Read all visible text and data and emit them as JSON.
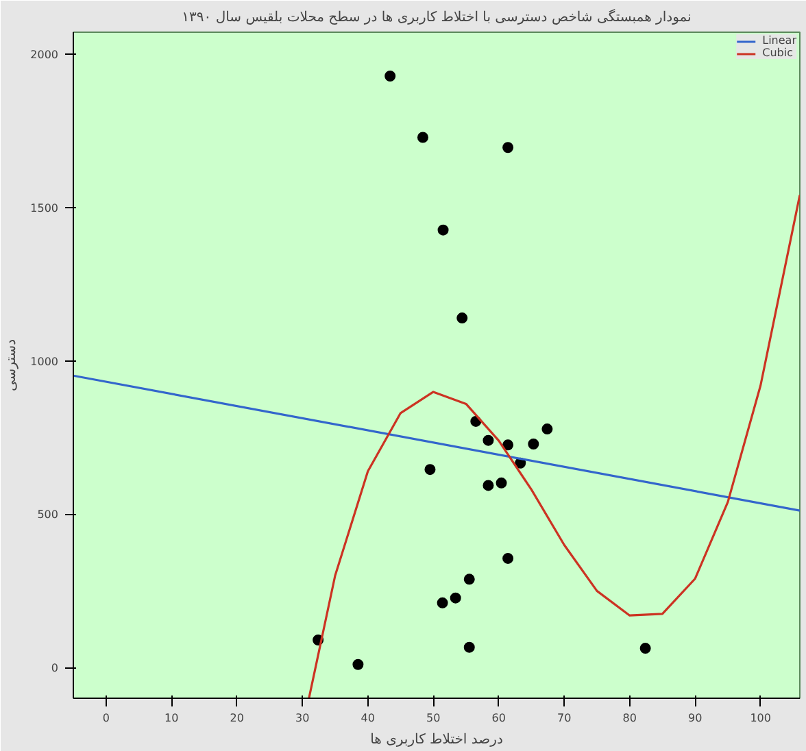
{
  "chart_data": {
    "type": "scatter",
    "title": "نمودار همبستگی شاخص دسترسی با اختلاط کاربری ها در سطح محلات بلقیس سال ۱۳۹۰",
    "xlabel": "درصد اختلاط کاربری ها",
    "ylabel": "دسترسی",
    "xlim": [
      -5,
      106
    ],
    "ylim": [
      -100,
      2072
    ],
    "xticks": [
      0,
      10,
      20,
      30,
      40,
      50,
      60,
      70,
      80,
      90,
      100
    ],
    "yticks": [
      0,
      500,
      1000,
      1500,
      2000
    ],
    "grid": false,
    "legend": "top right",
    "series": [
      {
        "color": "#000000",
        "marker": "circle",
        "x": [
          43.4,
          48.4,
          61.4,
          51.5,
          54.4,
          56.5,
          67.4,
          58.4,
          61.4,
          65.3,
          63.3,
          49.5,
          58.4,
          60.4,
          61.4,
          55.5,
          53.4,
          51.4,
          55.5,
          32.4,
          38.5,
          82.4
        ],
        "values": [
          1929,
          1729,
          1696,
          1427,
          1140,
          803,
          778,
          741,
          726,
          729,
          667,
          646,
          594,
          602,
          356,
          288,
          227,
          211,
          66,
          90,
          10,
          63
        ]
      },
      {
        "type": "line",
        "name": "Linear",
        "color": "#3366cc",
        "marker": "none",
        "x": [
          -5,
          106
        ],
        "values": [
          952,
          512
        ]
      },
      {
        "type": "line",
        "name": "Cubic",
        "color": "#cc3322",
        "marker": "none",
        "x": [
          31,
          35,
          40,
          45,
          50,
          55,
          60,
          65,
          70,
          75,
          80,
          85,
          90,
          95,
          100,
          106
        ],
        "values": [
          -100,
          300,
          640,
          830,
          899,
          860,
          740,
          580,
          400,
          250,
          170,
          175,
          290,
          540,
          920,
          1541
        ]
      }
    ]
  }
}
